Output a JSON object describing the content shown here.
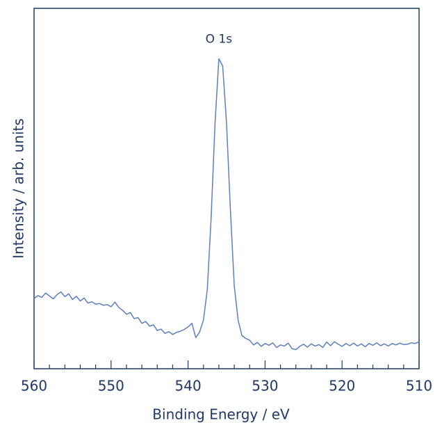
{
  "chart_data": {
    "type": "line",
    "xlabel": "Binding Energy / eV",
    "ylabel": "Intensity / arb. units",
    "annotation": "O 1s",
    "color": "#5b7fbf",
    "xlim": [
      560,
      510
    ],
    "ylim": [
      0,
      100
    ],
    "xticks": [
      560,
      550,
      540,
      530,
      520,
      510
    ],
    "xminorticks": [
      558,
      556,
      554,
      552,
      548,
      546,
      544,
      542,
      538,
      536,
      534,
      532,
      528,
      526,
      524,
      522,
      518,
      516,
      514,
      512
    ],
    "x": [
      560,
      559.5,
      559,
      558.5,
      558,
      557.5,
      557,
      556.5,
      556,
      555.5,
      555,
      554.5,
      554,
      553.5,
      553,
      552.5,
      552,
      551.5,
      551,
      550.5,
      550,
      549.5,
      549,
      548.5,
      548,
      547.5,
      547,
      546.5,
      546,
      545.5,
      545,
      544.5,
      544,
      543.5,
      543,
      542.5,
      542,
      541.5,
      541,
      540.5,
      540,
      539.5,
      539,
      538.5,
      538,
      537.5,
      537,
      536.5,
      536,
      535.5,
      535,
      534.5,
      534,
      533.5,
      533,
      532.5,
      532,
      531.5,
      531,
      530.5,
      530,
      529.5,
      529,
      528.5,
      528,
      527.5,
      527,
      526.5,
      526,
      525.5,
      525,
      524.5,
      524,
      523.5,
      523,
      522.5,
      522,
      521.5,
      521,
      520.5,
      520,
      519.5,
      519,
      518.5,
      518,
      517.5,
      517,
      516.5,
      516,
      515.5,
      515,
      514.5,
      514,
      513.5,
      513,
      512.5,
      512,
      511.5,
      511,
      510.5,
      510
    ],
    "values": [
      19.5,
      20.3,
      19.8,
      21,
      20.2,
      19.4,
      20.6,
      21.3,
      20,
      20.8,
      19.2,
      20.1,
      18.8,
      19.6,
      18.2,
      18.6,
      17.9,
      18.1,
      17.6,
      17.8,
      17.2,
      18.5,
      17,
      16.2,
      15.1,
      15.6,
      13.9,
      14.2,
      12.6,
      13.1,
      11.8,
      12.2,
      10.6,
      11,
      9.8,
      10.3,
      9.5,
      10.1,
      10.4,
      10.9,
      11.6,
      12.6,
      8.6,
      10.2,
      13.5,
      22,
      42,
      68,
      86,
      84,
      68,
      44,
      23,
      13.5,
      9.2,
      8.4,
      7.9,
      6.6,
      7.3,
      6.2,
      7,
      6.5,
      7.2,
      5.9,
      6.6,
      6.3,
      7.1,
      5.6,
      5.3,
      6.2,
      6.8,
      6,
      6.9,
      6.3,
      6.7,
      5.9,
      7.4,
      6.4,
      7.5,
      6.8,
      6.2,
      7,
      6.4,
      7.1,
      6.3,
      6.9,
      6.1,
      7,
      6.5,
      7.2,
      6.4,
      6.9,
      6.3,
      7,
      6.6,
      7.1,
      6.7,
      6.8,
      7.2,
      7,
      7.5
    ]
  }
}
